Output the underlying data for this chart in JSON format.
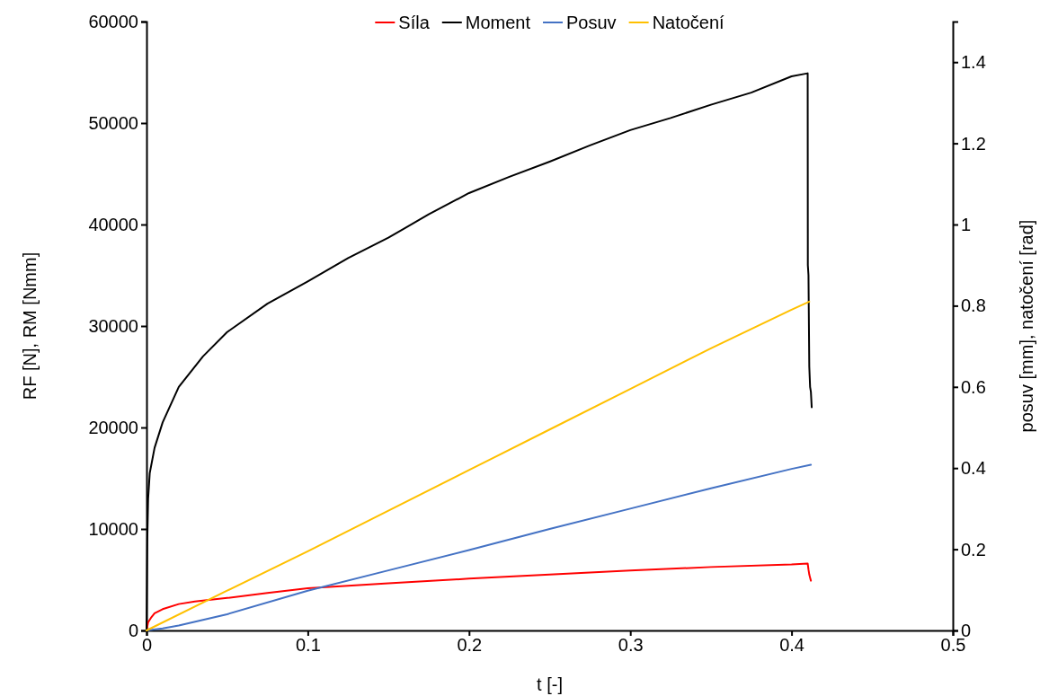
{
  "chart_data": {
    "type": "line",
    "xlabel": "t [-]",
    "ylabel": "RF [N], RM [Nmm]",
    "y2label": "posuv [mm], natočení [rad]",
    "xlim": [
      0,
      0.5
    ],
    "xticks": [
      0,
      0.1,
      0.2,
      0.3,
      0.4,
      0.5
    ],
    "ylim": [
      0,
      60000
    ],
    "yticks": [
      0,
      10000,
      20000,
      30000,
      40000,
      50000,
      60000
    ],
    "y2lim": [
      0,
      1.5
    ],
    "y2ticks": [
      0,
      0.2,
      0.4,
      0.6,
      0.8,
      1,
      1.2,
      1.4
    ],
    "legend": "top",
    "grid": false,
    "marker": "none",
    "line_style": "solid",
    "series": [
      {
        "name": "Síla",
        "color": "#ff0000",
        "x": [
          0,
          0.001,
          0.003,
          0.005,
          0.01,
          0.02,
          0.03,
          0.05,
          0.075,
          0.1,
          0.15,
          0.2,
          0.25,
          0.3,
          0.35,
          0.4,
          0.41,
          0.4105,
          0.411,
          0.4115,
          0.412
        ],
        "values": [
          0,
          800,
          1300,
          1700,
          2100,
          2600,
          2850,
          3200,
          3700,
          4150,
          4650,
          5100,
          5500,
          5900,
          6250,
          6500,
          6600,
          6000,
          5500,
          5200,
          4900
        ]
      },
      {
        "name": "Moment",
        "color": "#000000",
        "x": [
          0,
          0.0005,
          0.001,
          0.002,
          0.005,
          0.01,
          0.02,
          0.035,
          0.05,
          0.075,
          0.1,
          0.125,
          0.15,
          0.175,
          0.2,
          0.225,
          0.25,
          0.275,
          0.3,
          0.325,
          0.35,
          0.375,
          0.4,
          0.41,
          0.4101,
          0.4105,
          0.411,
          0.4115,
          0.412,
          0.4125
        ],
        "values": [
          0,
          9000,
          13000,
          15500,
          18000,
          20500,
          24000,
          27000,
          29400,
          32200,
          34400,
          36700,
          38700,
          41000,
          43100,
          44700,
          46200,
          47800,
          49300,
          50500,
          51800,
          53000,
          54600,
          54900,
          36000,
          35000,
          26000,
          24000,
          23500,
          22000
        ]
      },
      {
        "name": "Posuv",
        "color": "#4472c4",
        "axis": "y2",
        "x": [
          0,
          0.01,
          0.02,
          0.05,
          0.1,
          0.15,
          0.2,
          0.25,
          0.3,
          0.35,
          0.4,
          0.412
        ],
        "values": [
          0,
          0.005,
          0.012,
          0.04,
          0.098,
          0.148,
          0.198,
          0.25,
          0.3,
          0.35,
          0.398,
          0.408
        ]
      },
      {
        "name": "Natočení",
        "color": "#ffc000",
        "axis": "y2",
        "x": [
          0,
          0.05,
          0.1,
          0.15,
          0.2,
          0.25,
          0.3,
          0.35,
          0.4,
          0.411
        ],
        "values": [
          0,
          0.098,
          0.195,
          0.295,
          0.395,
          0.495,
          0.595,
          0.695,
          0.79,
          0.81
        ]
      }
    ]
  }
}
